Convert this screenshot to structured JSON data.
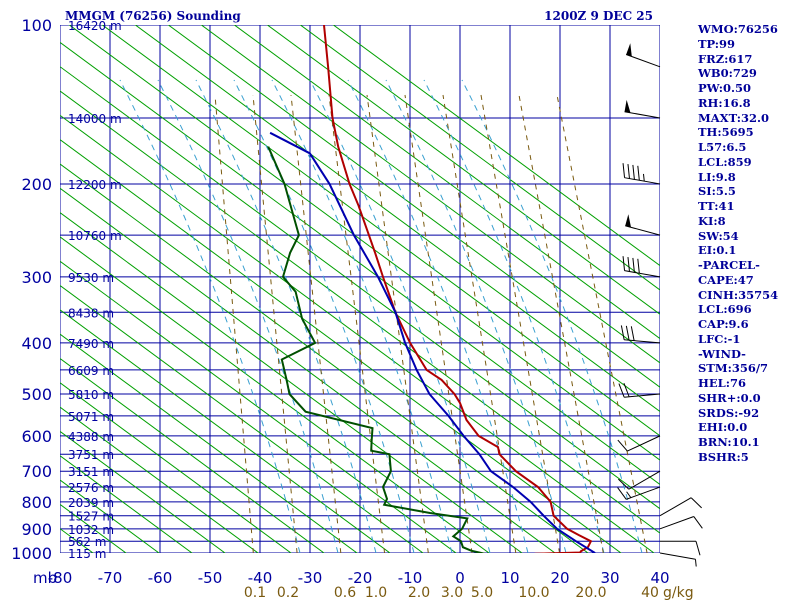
{
  "chart_data": {
    "type": "line",
    "title": "MMGM (76256) Sounding",
    "subtitle": "1200Z  9 DEC 25",
    "colors": {
      "grid": "#0000a0",
      "axis_text": "#0000a0",
      "isotherm": "#00a000",
      "mixing_ratio": "#7a5a10",
      "moist_adiabat": "#3aa0d0",
      "temperature": "#b00000",
      "dewpoint": "#005000",
      "parcel": "#0000b0",
      "barbs": "#000000"
    },
    "axes": {
      "x": {
        "label": "mb",
        "range": [
          -80,
          40
        ],
        "ticks": [
          -80,
          -70,
          -60,
          -50,
          -40,
          -30,
          -20,
          -10,
          0,
          10,
          20,
          30,
          40
        ]
      },
      "y": {
        "scale": "log-pressure",
        "range": [
          1000,
          100
        ],
        "ticks": [
          100,
          200,
          300,
          400,
          500,
          600,
          700,
          800,
          900,
          1000
        ]
      }
    },
    "mixing_ratio_labels": {
      "unit": "g/kg",
      "values": [
        "0.1",
        "0.2",
        "0.6",
        "1.0",
        "2.0",
        "3.0",
        "5.0",
        "10.0",
        "20.0",
        "40"
      ]
    },
    "heights": [
      {
        "p": 100,
        "label": "16420 m"
      },
      {
        "p": 150,
        "label": "14000 m"
      },
      {
        "p": 200,
        "label": "12200 m"
      },
      {
        "p": 250,
        "label": "10760 m"
      },
      {
        "p": 300,
        "label": "9530 m"
      },
      {
        "p": 350,
        "label": "8438 m"
      },
      {
        "p": 400,
        "label": "7490 m"
      },
      {
        "p": 450,
        "label": "6609 m"
      },
      {
        "p": 500,
        "label": "5810 m"
      },
      {
        "p": 550,
        "label": "5071 m"
      },
      {
        "p": 600,
        "label": "4388 m"
      },
      {
        "p": 650,
        "label": "3751 m"
      },
      {
        "p": 700,
        "label": "3151 m"
      },
      {
        "p": 750,
        "label": "2576 m"
      },
      {
        "p": 800,
        "label": "2039 m"
      },
      {
        "p": 850,
        "label": "1527 m"
      },
      {
        "p": 900,
        "label": "1032 m"
      },
      {
        "p": 950,
        "label": "562 m"
      },
      {
        "p": 1000,
        "label": "115 m"
      }
    ],
    "series": [
      {
        "name": "Temperature",
        "points": [
          [
            1003,
            15
          ],
          [
            998,
            24
          ],
          [
            992,
            24
          ],
          [
            975,
            25
          ],
          [
            950,
            25
          ],
          [
            925,
            22
          ],
          [
            900,
            19
          ],
          [
            850,
            15
          ],
          [
            800,
            13
          ],
          [
            750,
            9
          ],
          [
            700,
            3
          ],
          [
            650,
            -2
          ],
          [
            630,
            -3
          ],
          [
            600,
            -8
          ],
          [
            560,
            -12
          ],
          [
            520,
            -15
          ],
          [
            500,
            -17
          ],
          [
            470,
            -21
          ],
          [
            450,
            -25
          ],
          [
            400,
            -31
          ],
          [
            350,
            -37
          ],
          [
            300,
            -43
          ],
          [
            270,
            -47
          ],
          [
            250,
            -50
          ],
          [
            220,
            -55
          ],
          [
            200,
            -59
          ],
          [
            170,
            -65
          ],
          [
            150,
            -69
          ],
          [
            120,
            -75
          ],
          [
            100,
            -80
          ]
        ]
      },
      {
        "name": "Dewpoint",
        "points": [
          [
            1003,
            5
          ],
          [
            990,
            2
          ],
          [
            975,
            0
          ],
          [
            950,
            -1
          ],
          [
            930,
            -3
          ],
          [
            900,
            -2
          ],
          [
            860,
            -2
          ],
          [
            840,
            -10
          ],
          [
            810,
            -20
          ],
          [
            790,
            -20
          ],
          [
            750,
            -22
          ],
          [
            700,
            -22
          ],
          [
            650,
            -24
          ],
          [
            640,
            -28
          ],
          [
            610,
            -29
          ],
          [
            580,
            -30
          ],
          [
            540,
            -45
          ],
          [
            500,
            -50
          ],
          [
            470,
            -52
          ],
          [
            430,
            -55
          ],
          [
            400,
            -50
          ],
          [
            360,
            -55
          ],
          [
            320,
            -59
          ],
          [
            300,
            -63
          ],
          [
            270,
            -64
          ],
          [
            250,
            -64
          ],
          [
            230,
            -67
          ],
          [
            200,
            -72
          ],
          [
            170,
            -79
          ]
        ]
      },
      {
        "name": "Parcel",
        "points": [
          [
            1000,
            27
          ],
          [
            950,
            22
          ],
          [
            900,
            17
          ],
          [
            850,
            13
          ],
          [
            800,
            9
          ],
          [
            750,
            4
          ],
          [
            700,
            -2
          ],
          [
            650,
            -6
          ],
          [
            600,
            -11
          ],
          [
            550,
            -16
          ],
          [
            500,
            -22
          ],
          [
            450,
            -27
          ],
          [
            400,
            -32
          ],
          [
            350,
            -37
          ],
          [
            300,
            -44
          ],
          [
            250,
            -53
          ],
          [
            200,
            -63
          ],
          [
            175,
            -70
          ],
          [
            160,
            -80
          ]
        ]
      }
    ],
    "wind_barbs": [
      {
        "p": 120,
        "dir": 290,
        "spd": 50
      },
      {
        "p": 150,
        "dir": 280,
        "spd": 50
      },
      {
        "p": 200,
        "dir": 280,
        "spd": 45
      },
      {
        "p": 250,
        "dir": 285,
        "spd": 50
      },
      {
        "p": 300,
        "dir": 280,
        "spd": 40
      },
      {
        "p": 400,
        "dir": 275,
        "spd": 30
      },
      {
        "p": 500,
        "dir": 265,
        "spd": 20
      },
      {
        "p": 600,
        "dir": 245,
        "spd": 10
      },
      {
        "p": 700,
        "dir": 240,
        "spd": 10
      },
      {
        "p": 750,
        "dir": 250,
        "spd": 15
      },
      {
        "p": 850,
        "dir": 60,
        "spd": 10
      },
      {
        "p": 900,
        "dir": 70,
        "spd": 10
      },
      {
        "p": 950,
        "dir": 90,
        "spd": 10
      },
      {
        "p": 1000,
        "dir": 100,
        "spd": 5
      }
    ]
  },
  "indices": [
    "WMO:76256",
    "TP:99",
    "FRZ:617",
    "WB0:729",
    "PW:0.50",
    "RH:16.8",
    "MAXT:32.0",
    "TH:5695",
    "L57:6.5",
    "LCL:859",
    "LI:9.8",
    "SI:5.5",
    "TT:41",
    "KI:8",
    "SW:54",
    "EI:0.1",
    "-PARCEL-",
    "CAPE:47",
    "CINH:35754",
    "LCL:696",
    "CAP:9.6",
    "LFC:-1",
    "-WIND-",
    "STM:356/7",
    "HEL:76",
    "SHR+:0.0",
    "SRDS:-92",
    "EHI:0.0",
    "BRN:10.1",
    "BSHR:5"
  ]
}
